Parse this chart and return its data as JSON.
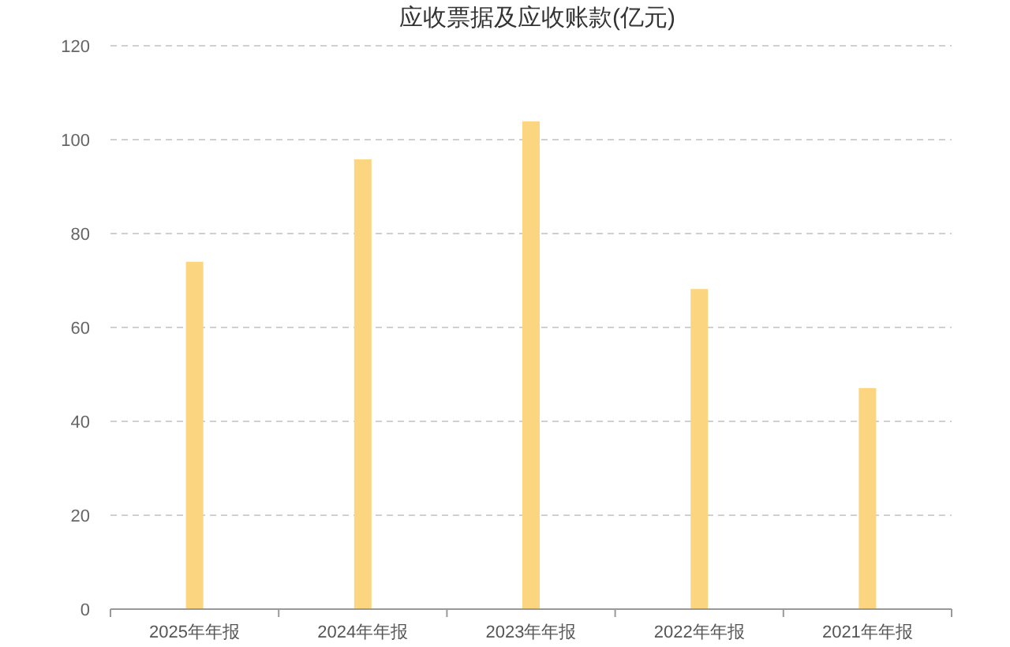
{
  "chart_data": {
    "type": "bar",
    "title": "应收票据及应收账款(亿元)",
    "categories": [
      "2025年年报",
      "2024年年报",
      "2023年年报",
      "2022年年报",
      "2021年年报"
    ],
    "values": [
      74,
      95.8,
      103.9,
      68.2,
      47.1
    ],
    "color": "#fcd581",
    "ylim": [
      0,
      120
    ],
    "yticks": [
      0,
      20,
      40,
      60,
      80,
      100,
      120
    ],
    "grid": "y"
  }
}
